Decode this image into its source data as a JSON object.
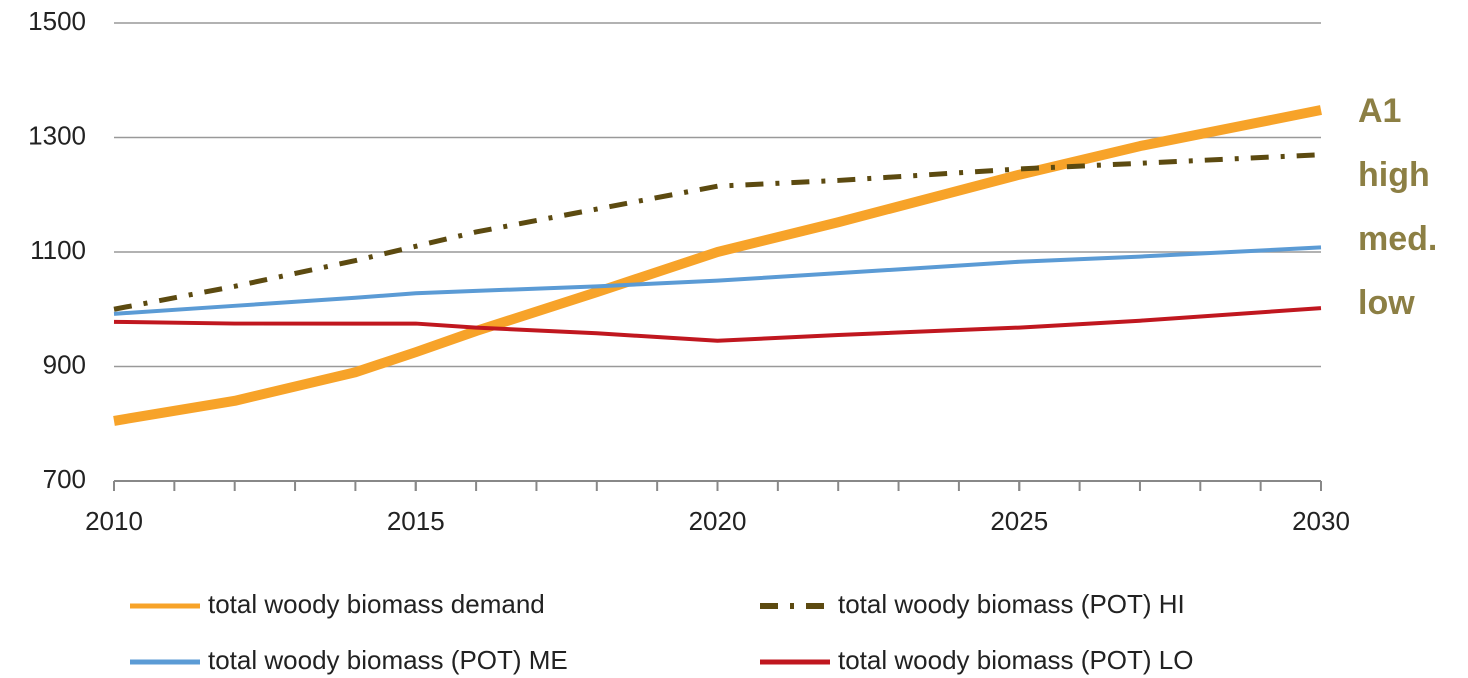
{
  "chart_data": {
    "type": "line",
    "x": [
      2010,
      2012,
      2014,
      2015,
      2016,
      2018,
      2020,
      2022,
      2025,
      2027,
      2030
    ],
    "series": [
      {
        "name": "total woody biomass demand",
        "color": "#f7a329",
        "width": 10,
        "values": [
          805,
          840,
          890,
          925,
          962,
          1030,
          1100,
          1152,
          1235,
          1285,
          1348
        ]
      },
      {
        "name": "total woody biomass (POT) HI",
        "color": "#5c4a10",
        "width": 5,
        "dashed": true,
        "values": [
          1000,
          1040,
          1085,
          1110,
          1135,
          1175,
          1215,
          1225,
          1245,
          1255,
          1270
        ]
      },
      {
        "name": "total woody biomass (POT) ME",
        "color": "#5b9bd5",
        "width": 4,
        "values": [
          992,
          1006,
          1020,
          1028,
          1032,
          1040,
          1050,
          1063,
          1083,
          1092,
          1108
        ]
      },
      {
        "name": "total woody biomass (POT) LO",
        "color": "#c0171f",
        "width": 4,
        "values": [
          978,
          975,
          975,
          975,
          968,
          958,
          945,
          955,
          968,
          980,
          1002
        ]
      }
    ],
    "xlim": [
      2010,
      2030
    ],
    "xticks": [
      2010,
      2015,
      2020,
      2025,
      2030
    ],
    "xminorticks": [
      2010,
      2011,
      2012,
      2013,
      2014,
      2015,
      2016,
      2017,
      2018,
      2019,
      2020,
      2021,
      2022,
      2023,
      2024,
      2025,
      2026,
      2027,
      2028,
      2029,
      2030
    ],
    "ylim": [
      700,
      1500
    ],
    "yticks": [
      700,
      900,
      1100,
      1300,
      1500
    ],
    "grid": true,
    "annotations": [
      "A1",
      "high",
      "med.",
      "low"
    ],
    "legend": "bottom"
  }
}
